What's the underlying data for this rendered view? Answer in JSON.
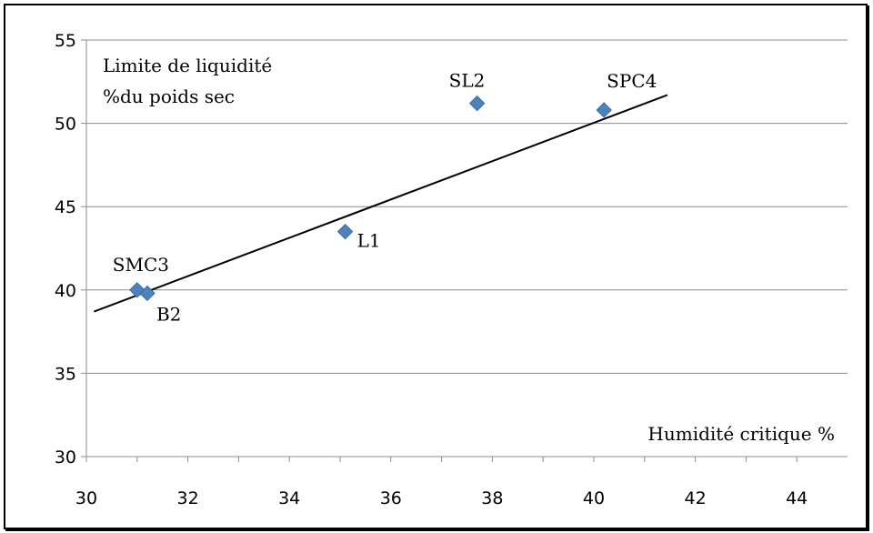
{
  "chart_data": {
    "type": "scatter",
    "title": "",
    "ylabel_line1": "Limite de liquidité",
    "ylabel_line2": "%du poids sec",
    "xlabel": "Humidité critique %",
    "xlim": [
      30,
      45
    ],
    "ylim": [
      30,
      55
    ],
    "xticks": [
      "30",
      "32",
      "34",
      "36",
      "38",
      "40",
      "42",
      "44"
    ],
    "yticks": [
      "30",
      "35",
      "40",
      "45",
      "50",
      "55"
    ],
    "grid": "horizontal",
    "marker_color": "#4f81bd",
    "points": [
      {
        "label": "SMC3",
        "x": 31.0,
        "y": 40.0
      },
      {
        "label": "B2",
        "x": 31.2,
        "y": 39.8
      },
      {
        "label": "L1",
        "x": 35.1,
        "y": 43.5
      },
      {
        "label": "SL2",
        "x": 37.7,
        "y": 51.2
      },
      {
        "label": "SPC4",
        "x": 40.2,
        "y": 50.8
      }
    ],
    "trendline": {
      "x": [
        30.15,
        41.45
      ],
      "y": [
        38.7,
        51.7
      ]
    }
  }
}
